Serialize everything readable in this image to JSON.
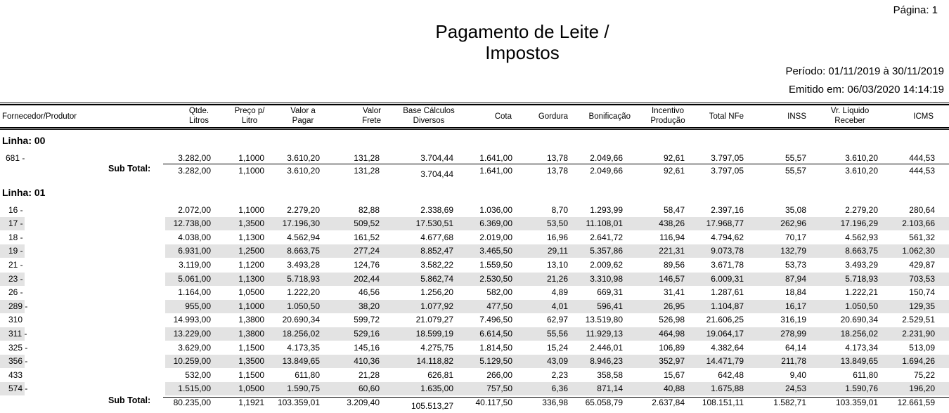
{
  "header": {
    "page_label": "Página: 1",
    "title_line1": "Pagamento de Leite /",
    "title_line2": "Impostos",
    "periodo": "Período: 01/11/2019 à 30/11/2019",
    "emitido": "Emitido em: 06/03/2020  14:14:19"
  },
  "columns": [
    {
      "l1": "Fornecedor/Produtor",
      "l2": ""
    },
    {
      "l1": "Qtde.",
      "l2": "Litros"
    },
    {
      "l1": "Preço p/",
      "l2": "Litro"
    },
    {
      "l1": "Valor a",
      "l2": "Pagar"
    },
    {
      "l1": "Valor",
      "l2": "Frete"
    },
    {
      "l1": "Base Cálculos",
      "l2": "Diversos"
    },
    {
      "l1": "Cota",
      "l2": ""
    },
    {
      "l1": "Gordura",
      "l2": ""
    },
    {
      "l1": "Bonificação",
      "l2": ""
    },
    {
      "l1": "Incentivo",
      "l2": "Produção"
    },
    {
      "l1": "Total NFe",
      "l2": ""
    },
    {
      "l1": "INSS",
      "l2": ""
    },
    {
      "l1": "Vr. Líquido",
      "l2": "Receber"
    },
    {
      "l1": "ICMS",
      "l2": ""
    }
  ],
  "subtotal_label": "Sub Total:",
  "sections": [
    {
      "title": "Linha: 00",
      "rows": [
        {
          "id": "681 -",
          "v": [
            "3.282,00",
            "1,1000",
            "3.610,20",
            "131,28",
            "3.704,44",
            "1.641,00",
            "13,78",
            "2.049,66",
            "92,61",
            "3.797,05",
            "55,57",
            "3.610,20",
            "444,53"
          ]
        }
      ],
      "subtotal": [
        "3.282,00",
        "1,1000",
        "3.610,20",
        "131,28",
        "3.704,44",
        "1.641,00",
        "13,78",
        "2.049,66",
        "92,61",
        "3.797,05",
        "55,57",
        "3.610,20",
        "444,53"
      ]
    },
    {
      "title": "Linha: 01",
      "rows": [
        {
          "id": "16 -",
          "v": [
            "2.072,00",
            "1,1000",
            "2.279,20",
            "82,88",
            "2.338,69",
            "1.036,00",
            "8,70",
            "1.293,99",
            "58,47",
            "2.397,16",
            "35,08",
            "2.279,20",
            "280,64"
          ]
        },
        {
          "id": "17 -",
          "v": [
            "12.738,00",
            "1,3500",
            "17.196,30",
            "509,52",
            "17.530,51",
            "6.369,00",
            "53,50",
            "11.108,01",
            "438,26",
            "17.968,77",
            "262,96",
            "17.196,29",
            "2.103,66"
          ]
        },
        {
          "id": "18 -",
          "v": [
            "4.038,00",
            "1,1300",
            "4.562,94",
            "161,52",
            "4.677,68",
            "2.019,00",
            "16,96",
            "2.641,72",
            "116,94",
            "4.794,62",
            "70,17",
            "4.562,93",
            "561,32"
          ]
        },
        {
          "id": "19 -",
          "v": [
            "6.931,00",
            "1,2500",
            "8.663,75",
            "277,24",
            "8.852,47",
            "3.465,50",
            "29,11",
            "5.357,86",
            "221,31",
            "9.073,78",
            "132,79",
            "8.663,75",
            "1.062,30"
          ]
        },
        {
          "id": "21 -",
          "v": [
            "3.119,00",
            "1,1200",
            "3.493,28",
            "124,76",
            "3.582,22",
            "1.559,50",
            "13,10",
            "2.009,62",
            "89,56",
            "3.671,78",
            "53,73",
            "3.493,29",
            "429,87"
          ]
        },
        {
          "id": "23 -",
          "v": [
            "5.061,00",
            "1,1300",
            "5.718,93",
            "202,44",
            "5.862,74",
            "2.530,50",
            "21,26",
            "3.310,98",
            "146,57",
            "6.009,31",
            "87,94",
            "5.718,93",
            "703,53"
          ]
        },
        {
          "id": "26 -",
          "v": [
            "1.164,00",
            "1,0500",
            "1.222,20",
            "46,56",
            "1.256,20",
            "582,00",
            "4,89",
            "669,31",
            "31,41",
            "1.287,61",
            "18,84",
            "1.222,21",
            "150,74"
          ]
        },
        {
          "id": "289 -",
          "v": [
            "955,00",
            "1,1000",
            "1.050,50",
            "38,20",
            "1.077,92",
            "477,50",
            "4,01",
            "596,41",
            "26,95",
            "1.104,87",
            "16,17",
            "1.050,50",
            "129,35"
          ]
        },
        {
          "id": "310",
          "v": [
            "14.993,00",
            "1,3800",
            "20.690,34",
            "599,72",
            "21.079,27",
            "7.496,50",
            "62,97",
            "13.519,80",
            "526,98",
            "21.606,25",
            "316,19",
            "20.690,34",
            "2.529,51"
          ]
        },
        {
          "id": "311 -",
          "v": [
            "13.229,00",
            "1,3800",
            "18.256,02",
            "529,16",
            "18.599,19",
            "6.614,50",
            "55,56",
            "11.929,13",
            "464,98",
            "19.064,17",
            "278,99",
            "18.256,02",
            "2.231,90"
          ]
        },
        {
          "id": "325 -",
          "v": [
            "3.629,00",
            "1,1500",
            "4.173,35",
            "145,16",
            "4.275,75",
            "1.814,50",
            "15,24",
            "2.446,01",
            "106,89",
            "4.382,64",
            "64,14",
            "4.173,34",
            "513,09"
          ]
        },
        {
          "id": "356 -",
          "v": [
            "10.259,00",
            "1,3500",
            "13.849,65",
            "410,36",
            "14.118,82",
            "5.129,50",
            "43,09",
            "8.946,23",
            "352,97",
            "14.471,79",
            "211,78",
            "13.849,65",
            "1.694,26"
          ]
        },
        {
          "id": "433",
          "v": [
            "532,00",
            "1,1500",
            "611,80",
            "21,28",
            "626,81",
            "266,00",
            "2,23",
            "358,58",
            "15,67",
            "642,48",
            "9,40",
            "611,80",
            "75,22"
          ]
        },
        {
          "id": "574 -",
          "v": [
            "1.515,00",
            "1,0500",
            "1.590,75",
            "60,60",
            "1.635,00",
            "757,50",
            "6,36",
            "871,14",
            "40,88",
            "1.675,88",
            "24,53",
            "1.590,76",
            "196,20"
          ]
        }
      ],
      "subtotal": [
        "80.235,00",
        "1,1921",
        "103.359,01",
        "3.209,40",
        "105.513,27",
        "40.117,50",
        "336,98",
        "65.058,79",
        "2.637,84",
        "108.151,11",
        "1.582,71",
        "103.359,01",
        "12.661,59"
      ]
    }
  ]
}
